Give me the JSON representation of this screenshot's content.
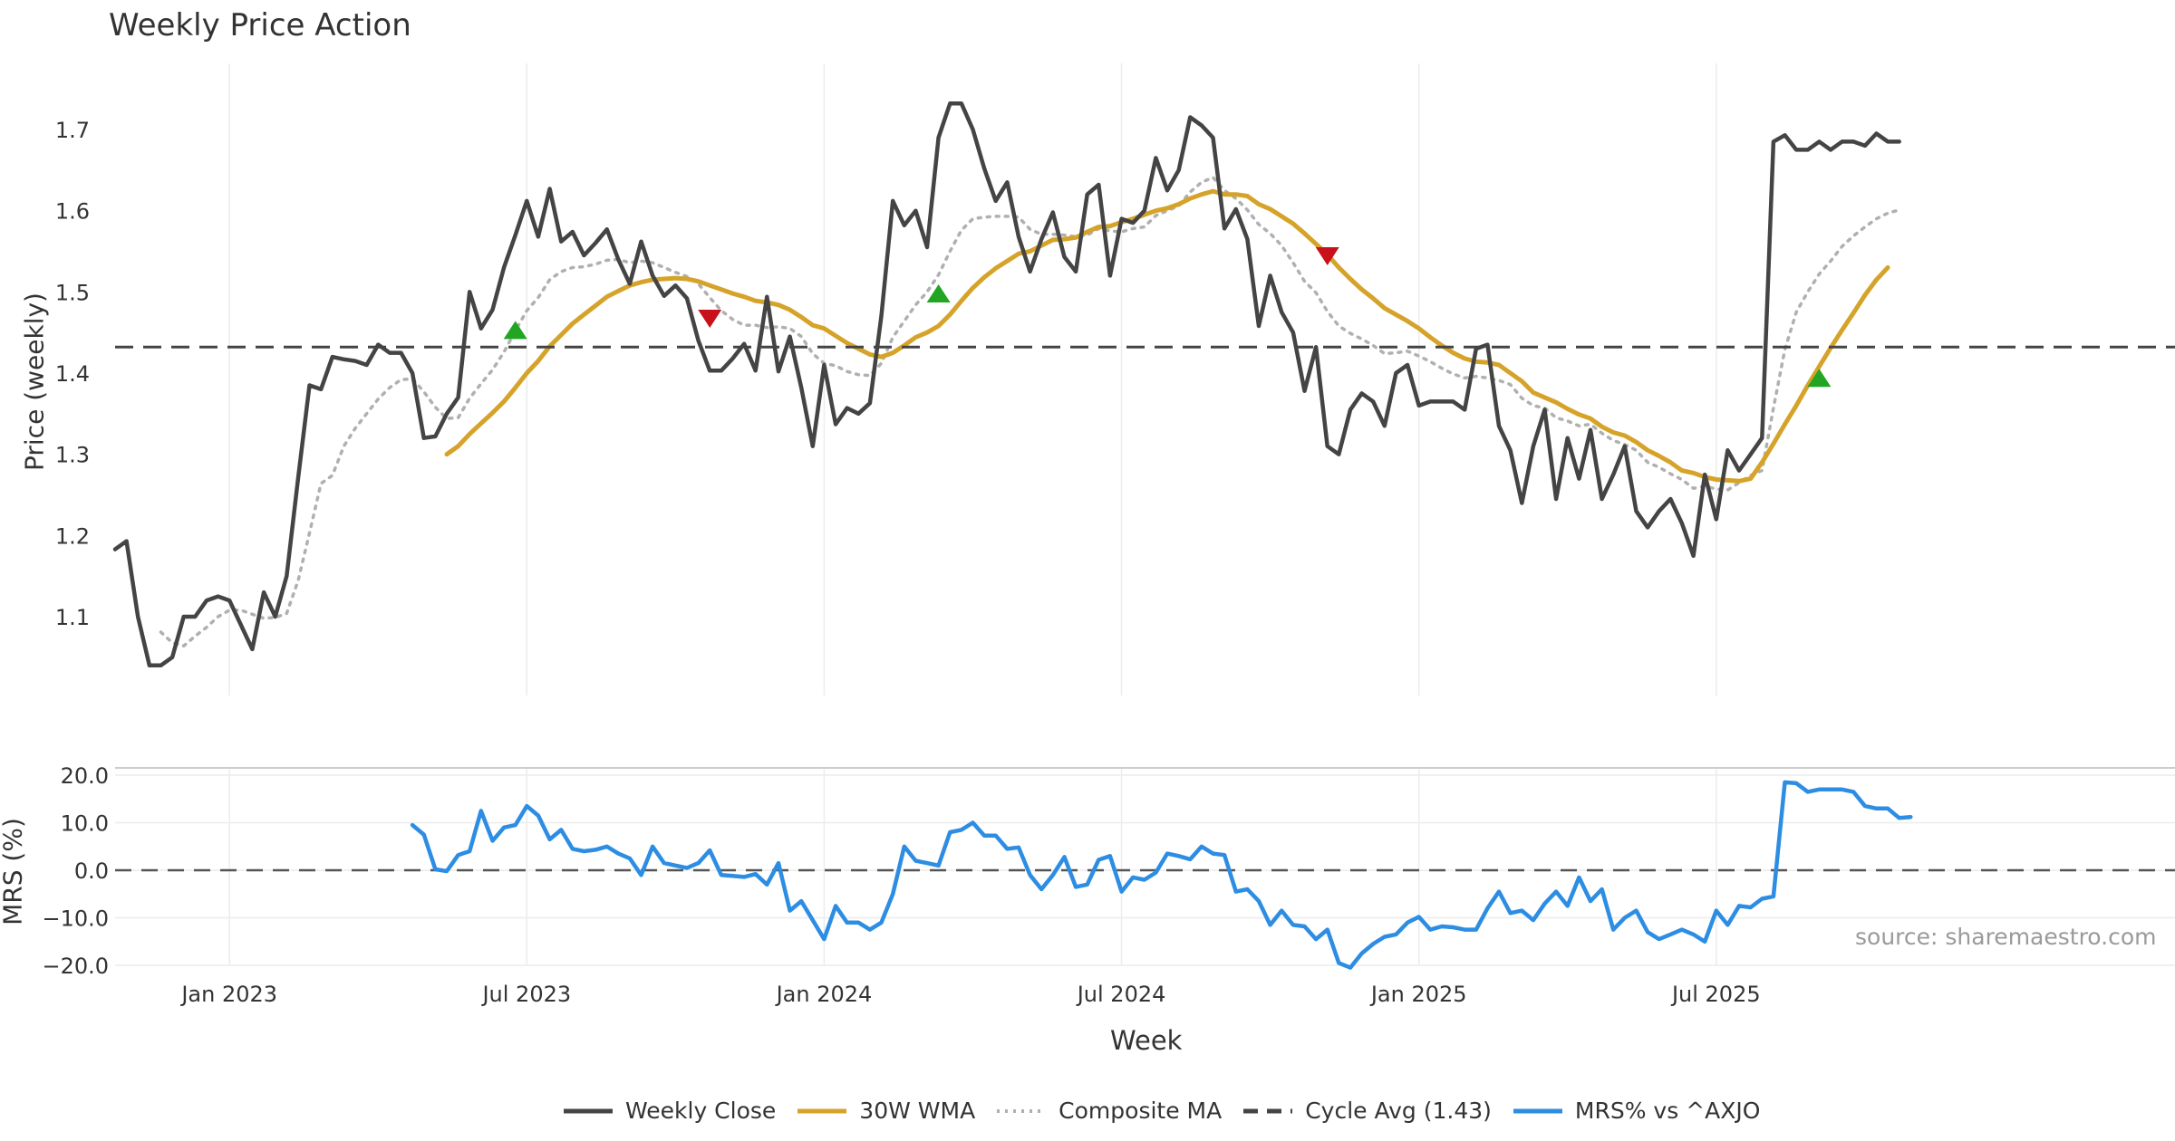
{
  "title": "Weekly Price Action",
  "chart_data": [
    {
      "type": "line",
      "panel": "price",
      "ylabel": "Price (weekly)",
      "ylim": [
        1.0,
        1.78
      ],
      "yticks": [
        1.1,
        1.2,
        1.3,
        1.4,
        1.5,
        1.6,
        1.7
      ],
      "ytick_labels": [
        "1.1",
        "1.2",
        "1.3",
        "1.4",
        "1.5",
        "1.6",
        "1.7"
      ],
      "x_start": "2022-11-18",
      "x_step_weeks": 1,
      "series": [
        {
          "name": "Weekly Close",
          "color": "#444444",
          "style": "solid",
          "values": [
            1.183,
            1.193,
            1.1,
            1.04,
            1.04,
            1.05,
            1.1,
            1.1,
            1.12,
            1.125,
            1.12,
            1.09,
            1.06,
            1.13,
            1.1,
            1.15,
            1.27,
            1.385,
            1.38,
            1.42,
            1.417,
            1.415,
            1.41,
            1.435,
            1.425,
            1.425,
            1.4,
            1.32,
            1.322,
            1.35,
            1.37,
            1.5,
            1.455,
            1.478,
            1.53,
            1.57,
            1.612,
            1.568,
            1.627,
            1.562,
            1.574,
            1.545,
            1.56,
            1.577,
            1.54,
            1.51,
            1.562,
            1.52,
            1.495,
            1.508,
            1.492,
            1.44,
            1.403,
            1.403,
            1.418,
            1.436,
            1.403,
            1.494,
            1.402,
            1.445,
            1.382,
            1.31,
            1.41,
            1.337,
            1.357,
            1.35,
            1.363,
            1.47,
            1.612,
            1.582,
            1.6,
            1.555,
            1.69,
            1.732,
            1.732,
            1.7,
            1.652,
            1.612,
            1.635,
            1.568,
            1.525,
            1.565,
            1.598,
            1.543,
            1.525,
            1.62,
            1.632,
            1.52,
            1.59,
            1.585,
            1.6,
            1.665,
            1.625,
            1.65,
            1.715,
            1.705,
            1.69,
            1.578,
            1.602,
            1.565,
            1.458,
            1.52,
            1.475,
            1.45,
            1.378,
            1.432,
            1.31,
            1.3,
            1.355,
            1.375,
            1.365,
            1.335,
            1.4,
            1.41,
            1.36,
            1.365,
            1.365,
            1.365,
            1.355,
            1.43,
            1.435,
            1.335,
            1.305,
            1.24,
            1.31,
            1.355,
            1.245,
            1.32,
            1.27,
            1.33,
            1.245,
            1.275,
            1.31,
            1.23,
            1.21,
            1.23,
            1.245,
            1.215,
            1.175,
            1.275,
            1.22,
            1.305,
            1.28,
            1.3,
            1.32,
            1.685,
            1.693,
            1.675,
            1.675,
            1.685,
            1.675,
            1.685,
            1.685,
            1.68,
            1.695,
            1.685,
            1.685
          ]
        },
        {
          "name": "30W WMA",
          "color": "#d6a32a",
          "style": "solid",
          "values": [
            null,
            null,
            null,
            null,
            null,
            null,
            null,
            null,
            null,
            null,
            null,
            null,
            null,
            null,
            null,
            null,
            null,
            null,
            null,
            null,
            null,
            null,
            null,
            null,
            null,
            null,
            null,
            null,
            null,
            1.3,
            1.31,
            1.325,
            1.338,
            1.351,
            1.365,
            1.382,
            1.4,
            1.415,
            1.433,
            1.447,
            1.461,
            1.472,
            1.483,
            1.494,
            1.501,
            1.508,
            1.512,
            1.515,
            1.516,
            1.517,
            1.516,
            1.513,
            1.508,
            1.503,
            1.498,
            1.494,
            1.489,
            1.487,
            1.484,
            1.478,
            1.469,
            1.459,
            1.455,
            1.446,
            1.437,
            1.43,
            1.423,
            1.42,
            1.425,
            1.434,
            1.444,
            1.45,
            1.458,
            1.472,
            1.489,
            1.505,
            1.518,
            1.529,
            1.538,
            1.547,
            1.55,
            1.557,
            1.564,
            1.565,
            1.567,
            1.574,
            1.58,
            1.581,
            1.586,
            1.59,
            1.595,
            1.6,
            1.603,
            1.608,
            1.615,
            1.62,
            1.624,
            1.62,
            1.62,
            1.618,
            1.608,
            1.602,
            1.593,
            1.584,
            1.572,
            1.559,
            1.546,
            1.53,
            1.516,
            1.503,
            1.492,
            1.48,
            1.472,
            1.464,
            1.455,
            1.444,
            1.434,
            1.425,
            1.418,
            1.414,
            1.413,
            1.41,
            1.4,
            1.39,
            1.376,
            1.37,
            1.364,
            1.356,
            1.349,
            1.344,
            1.334,
            1.327,
            1.323,
            1.315,
            1.305,
            1.298,
            1.29,
            1.28,
            1.277,
            1.272,
            1.269,
            1.268,
            1.267,
            1.27,
            1.29,
            1.313,
            1.337,
            1.36,
            1.385,
            1.408,
            1.431,
            1.453,
            1.474,
            1.496,
            1.515,
            1.53
          ]
        },
        {
          "name": "Composite MA",
          "color": "#b0b0b0",
          "style": "dotted",
          "values": [
            null,
            null,
            null,
            null,
            1.081,
            1.068,
            1.064,
            1.076,
            1.087,
            1.1,
            1.108,
            1.108,
            1.103,
            1.098,
            1.099,
            1.104,
            1.144,
            1.203,
            1.264,
            1.274,
            1.31,
            1.332,
            1.35,
            1.368,
            1.382,
            1.392,
            1.393,
            1.377,
            1.358,
            1.344,
            1.345,
            1.369,
            1.387,
            1.404,
            1.426,
            1.452,
            1.477,
            1.493,
            1.515,
            1.525,
            1.53,
            1.531,
            1.534,
            1.539,
            1.54,
            1.536,
            1.538,
            1.536,
            1.53,
            1.524,
            1.519,
            1.51,
            1.493,
            1.477,
            1.466,
            1.459,
            1.459,
            1.456,
            1.457,
            1.455,
            1.445,
            1.424,
            1.412,
            1.409,
            1.402,
            1.398,
            1.397,
            1.412,
            1.444,
            1.464,
            1.484,
            1.5,
            1.521,
            1.55,
            1.576,
            1.59,
            1.592,
            1.593,
            1.593,
            1.592,
            1.577,
            1.571,
            1.571,
            1.57,
            1.568,
            1.57,
            1.578,
            1.575,
            1.574,
            1.578,
            1.58,
            1.594,
            1.6,
            1.606,
            1.623,
            1.635,
            1.641,
            1.625,
            1.615,
            1.601,
            1.583,
            1.572,
            1.557,
            1.536,
            1.513,
            1.499,
            1.476,
            1.458,
            1.449,
            1.442,
            1.434,
            1.424,
            1.425,
            1.427,
            1.421,
            1.414,
            1.406,
            1.399,
            1.394,
            1.396,
            1.394,
            1.391,
            1.386,
            1.369,
            1.36,
            1.357,
            1.345,
            1.341,
            1.335,
            1.337,
            1.326,
            1.317,
            1.312,
            1.305,
            1.29,
            1.284,
            1.276,
            1.269,
            1.258,
            1.261,
            1.257,
            1.256,
            1.265,
            1.274,
            1.28,
            1.357,
            1.429,
            1.475,
            1.5,
            1.522,
            1.538,
            1.556,
            1.569,
            1.58,
            1.59,
            1.597,
            1.601
          ]
        },
        {
          "name": "Cycle Avg (1.43)",
          "color": "#444444",
          "style": "dashed",
          "hline": 1.432
        }
      ],
      "markers": [
        {
          "type": "buy",
          "week_index": 35,
          "value": 1.452,
          "color": "#22a522"
        },
        {
          "type": "sell",
          "week_index": 52,
          "value": 1.468,
          "color": "#c8111a"
        },
        {
          "type": "buy",
          "week_index": 72,
          "value": 1.497,
          "color": "#22a522"
        },
        {
          "type": "sell",
          "week_index": 106,
          "value": 1.545,
          "color": "#c8111a"
        },
        {
          "type": "buy",
          "week_index": 149,
          "value": 1.393,
          "color": "#22a522"
        }
      ]
    },
    {
      "type": "line",
      "panel": "mrs",
      "ylabel": "MRS (%)",
      "ylim": [
        -22,
        22
      ],
      "yticks": [
        -20,
        -10,
        0,
        10,
        20
      ],
      "ytick_labels": [
        "−20.0",
        "−10.0",
        "0.0",
        "10.0",
        "20.0"
      ],
      "x_start": "2022-11-18",
      "x_step_weeks": 1,
      "zero_line": 0,
      "series": [
        {
          "name": "MRS% vs ^AXJO",
          "color": "#2d8de3",
          "style": "solid",
          "values": [
            null,
            null,
            null,
            null,
            null,
            null,
            null,
            null,
            null,
            null,
            null,
            null,
            null,
            null,
            null,
            null,
            null,
            null,
            null,
            null,
            null,
            null,
            null,
            null,
            null,
            null,
            9.5,
            7.5,
            0.2,
            -0.2,
            3.2,
            4.0,
            12.5,
            6.2,
            9.0,
            9.5,
            13.5,
            11.5,
            6.5,
            8.5,
            4.5,
            4.0,
            4.3,
            5.0,
            3.5,
            2.5,
            -1.0,
            5.0,
            1.5,
            1.0,
            0.5,
            1.5,
            4.2,
            -1.0,
            -1.2,
            -1.4,
            -0.8,
            -3.0,
            1.5,
            -8.5,
            -6.5,
            -10.5,
            -14.5,
            -7.5,
            -11.0,
            -11.0,
            -12.5,
            -11.0,
            -5.0,
            5.0,
            2.0,
            1.5,
            1.0,
            8.0,
            8.5,
            10.0,
            7.3,
            7.3,
            4.5,
            4.8,
            -1.0,
            -4.0,
            -1.0,
            2.8,
            -3.5,
            -3.0,
            2.2,
            3.0,
            -4.5,
            -1.5,
            -2.0,
            -0.5,
            3.5,
            3.0,
            2.3,
            5.0,
            3.5,
            3.2,
            -4.5,
            -4.0,
            -6.5,
            -11.5,
            -8.5,
            -11.5,
            -11.8,
            -14.5,
            -12.5,
            -19.5,
            -20.5,
            -17.5,
            -15.5,
            -14.0,
            -13.5,
            -11.0,
            -9.8,
            -12.5,
            -11.8,
            -12.0,
            -12.5,
            -12.5,
            -8.0,
            -4.5,
            -9.0,
            -8.5,
            -10.5,
            -7.0,
            -4.5,
            -7.5,
            -1.5,
            -6.5,
            -4.0,
            -12.5,
            -10.0,
            -8.5,
            -13.0,
            -14.5,
            -13.5,
            -12.5,
            -13.5,
            -15.0,
            -8.5,
            -11.5,
            -7.5,
            -7.8,
            -6.0,
            -5.5,
            18.5,
            18.3,
            16.5,
            17.0,
            17.0,
            17.0,
            16.5,
            13.5,
            13.0,
            13.0,
            11.0,
            11.2
          ]
        }
      ]
    }
  ],
  "x_tick_labels": [
    "Jan 2023",
    "Jul 2023",
    "Jan 2024",
    "Jul 2024",
    "Jan 2025",
    "Jul 2025"
  ],
  "x_tick_week_indices": [
    10,
    36,
    62,
    88,
    114,
    140
  ],
  "xlabel": "Week",
  "watermark": "source: sharemaestro.com",
  "legend": [
    {
      "label": "Weekly Close",
      "color": "#444444",
      "style": "solid"
    },
    {
      "label": "30W WMA",
      "color": "#d6a32a",
      "style": "solid"
    },
    {
      "label": "Composite MA",
      "color": "#b0b0b0",
      "style": "dotted"
    },
    {
      "label": "Cycle Avg (1.43)",
      "color": "#444444",
      "style": "dashed"
    },
    {
      "label": "MRS% vs ^AXJO",
      "color": "#2d8de3",
      "style": "solid"
    }
  ]
}
